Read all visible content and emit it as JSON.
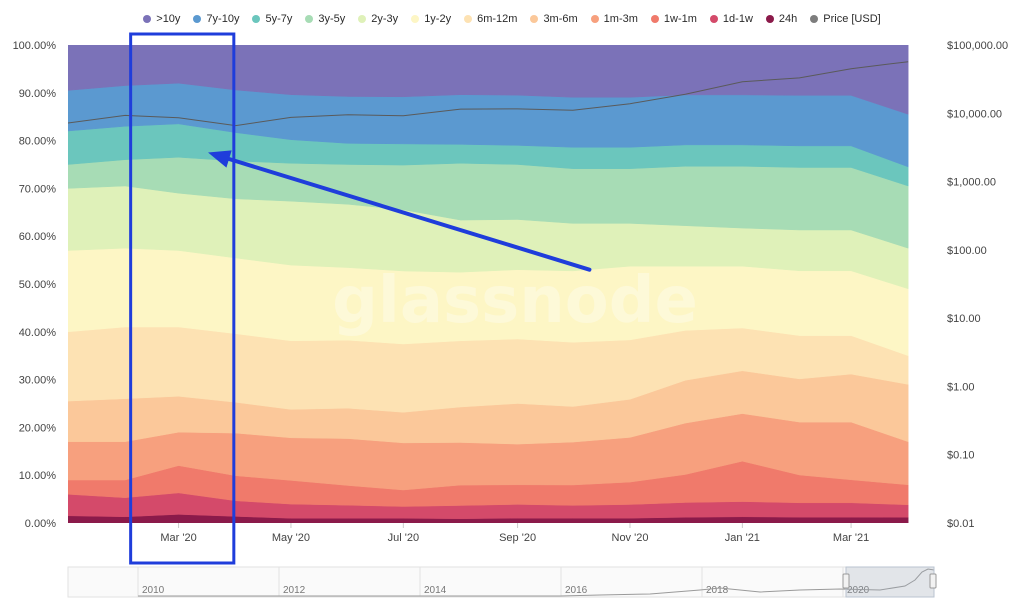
{
  "watermark": "glassnode",
  "chart_data": {
    "type": "area",
    "stacked": true,
    "percent": true,
    "x": [
      "2020-01-01",
      "2020-02-01",
      "2020-03-01",
      "2020-04-01",
      "2020-05-01",
      "2020-06-01",
      "2020-07-01",
      "2020-08-01",
      "2020-09-01",
      "2020-10-01",
      "2020-11-01",
      "2020-12-01",
      "2021-01-01",
      "2021-02-01",
      "2021-03-01",
      "2021-04-01"
    ],
    "x_ticks": [
      "Mar '20",
      "May '20",
      "Jul '20",
      "Sep '20",
      "Nov '20",
      "Jan '21",
      "Mar '21"
    ],
    "y_ticks": [
      "0.00%",
      "10.00%",
      "20.00%",
      "30.00%",
      "40.00%",
      "50.00%",
      "60.00%",
      "70.00%",
      "80.00%",
      "90.00%",
      "100.00%"
    ],
    "y2_ticks": [
      "$0.01",
      "$0.10",
      "$1.00",
      "$10.00",
      "$100.00",
      "$1,000.00",
      "$10,000.00",
      "$100,000.00"
    ],
    "y2_scale": "log",
    "ylim": [
      0,
      100
    ],
    "y2lim": [
      0.01,
      100000
    ],
    "legend_position": "top",
    "series": [
      {
        "name": "24h",
        "color": "#8b1a4a",
        "values": [
          1.5,
          1.3,
          1.8,
          1.4,
          1.0,
          1.0,
          1.0,
          0.9,
          1.0,
          1.0,
          1.0,
          1.2,
          1.3,
          1.2,
          1.2,
          1.2
        ]
      },
      {
        "name": "1d-1w",
        "color": "#d44a6a",
        "values": [
          4.5,
          4.0,
          4.5,
          3.3,
          3.0,
          2.8,
          2.5,
          2.8,
          2.9,
          2.7,
          2.9,
          3.1,
          3.2,
          3.0,
          3.0,
          2.6
        ]
      },
      {
        "name": "1w-1m",
        "color": "#f07a6b",
        "values": [
          3.0,
          3.7,
          5.7,
          5.3,
          5.0,
          4.2,
          3.5,
          4.3,
          4.1,
          4.3,
          4.7,
          5.9,
          8.5,
          5.8,
          4.8,
          4.2
        ]
      },
      {
        "name": "1m-3m",
        "color": "#f7a07e",
        "values": [
          8.0,
          8.0,
          7.0,
          9.0,
          9.0,
          10.0,
          10.0,
          9.0,
          8.5,
          9.0,
          9.4,
          10.8,
          10.0,
          11.0,
          12.0,
          9.0
        ]
      },
      {
        "name": "3m-6m",
        "color": "#fbc89a",
        "values": [
          8.5,
          9.0,
          7.5,
          6.5,
          6.0,
          6.5,
          6.5,
          7.5,
          8.5,
          7.5,
          8.0,
          9.0,
          9.0,
          9.0,
          10.0,
          12.0
        ]
      },
      {
        "name": "6m-12m",
        "color": "#fde2b3",
        "values": [
          14.5,
          15.0,
          14.5,
          14.5,
          14.5,
          14.5,
          14.5,
          14.0,
          13.5,
          13.5,
          12.5,
          10.5,
          9.0,
          9.0,
          8.0,
          6.0
        ]
      },
      {
        "name": "1y-2y",
        "color": "#fdf6c5",
        "values": [
          17.0,
          16.5,
          16.0,
          16.0,
          16.0,
          15.5,
          15.5,
          14.5,
          14.5,
          15.0,
          15.5,
          13.5,
          13.0,
          13.5,
          13.5,
          14.0
        ]
      },
      {
        "name": "2y-3y",
        "color": "#dff1b9",
        "values": [
          13.0,
          13.0,
          12.0,
          12.5,
          13.5,
          13.5,
          13.0,
          11.0,
          10.5,
          10.0,
          9.0,
          8.5,
          8.0,
          8.5,
          8.5,
          8.5
        ]
      },
      {
        "name": "3y-5y",
        "color": "#a7dcb5",
        "values": [
          5.0,
          5.5,
          7.5,
          8.0,
          8.0,
          8.5,
          9.5,
          12.0,
          11.5,
          11.5,
          11.5,
          12.5,
          13.0,
          13.0,
          13.0,
          13.0
        ]
      },
      {
        "name": "5y-7y",
        "color": "#6bc6bd",
        "values": [
          7.0,
          7.0,
          7.0,
          6.0,
          5.0,
          4.5,
          4.5,
          4.0,
          4.0,
          4.5,
          4.5,
          4.5,
          4.5,
          4.5,
          4.5,
          4.0
        ]
      },
      {
        "name": "7y-10y",
        "color": "#5b99d0",
        "values": [
          8.5,
          8.5,
          8.5,
          9.0,
          9.5,
          10.0,
          10.0,
          10.5,
          10.5,
          10.5,
          10.5,
          10.5,
          10.5,
          10.5,
          10.5,
          11.0
        ]
      },
      {
        "name": ">10y",
        "color": "#7b72b8",
        "values": [
          9.5,
          8.5,
          8.0,
          9.5,
          10.5,
          11.0,
          11.0,
          10.5,
          10.5,
          11.0,
          11.0,
          10.5,
          10.5,
          10.5,
          10.5,
          14.5
        ]
      }
    ],
    "price": {
      "name": "Price [USD]",
      "color": "#5a5a5a",
      "values": [
        7200,
        9300,
        8600,
        6600,
        8700,
        9500,
        9200,
        11500,
        11600,
        11100,
        13800,
        19000,
        29000,
        33000,
        45000,
        57000
      ]
    },
    "navigator": {
      "labels": [
        "2010",
        "2012",
        "2014",
        "2016",
        "2018",
        "2020"
      ]
    }
  },
  "legend": [
    {
      "label": ">10y",
      "color": "#7b72b8"
    },
    {
      "label": "7y-10y",
      "color": "#5b99d0"
    },
    {
      "label": "5y-7y",
      "color": "#6bc6bd"
    },
    {
      "label": "3y-5y",
      "color": "#a7dcb5"
    },
    {
      "label": "2y-3y",
      "color": "#dff1b9"
    },
    {
      "label": "1y-2y",
      "color": "#fdf6c5"
    },
    {
      "label": "6m-12m",
      "color": "#fde2b3"
    },
    {
      "label": "3m-6m",
      "color": "#fbc89a"
    },
    {
      "label": "1m-3m",
      "color": "#f7a07e"
    },
    {
      "label": "1w-1m",
      "color": "#f07a6b"
    },
    {
      "label": "1d-1w",
      "color": "#d44a6a"
    },
    {
      "label": "24h",
      "color": "#8b1a4a"
    },
    {
      "label": "Price [USD]",
      "color": "#7d7d7d"
    }
  ],
  "annotation": {
    "highlight_color": "#1f3ddb",
    "arrow_color": "#1f3ddb",
    "box_range": [
      "2020-02-04",
      "2020-03-31"
    ],
    "arrow_from": {
      "x": "2020-10-10",
      "y": 53
    },
    "arrow_to": {
      "x": "2020-03-17",
      "y": 77.5
    }
  }
}
